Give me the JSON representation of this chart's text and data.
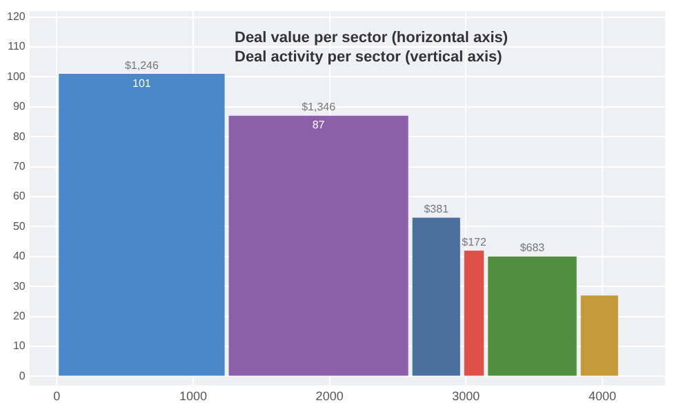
{
  "chart_data": {
    "type": "bar",
    "title": "Deal value per sector (horizontal axis)",
    "subtitle": "Deal activity per sector (vertical axis)",
    "x": [
      623,
      1919,
      2782,
      3059,
      3486,
      3978
    ],
    "values": [
      101,
      87,
      53,
      42,
      40,
      27
    ],
    "colors": [
      "#4a88c7",
      "#8c5fa8",
      "#4a6f9c",
      "#e0504a",
      "#4f8f3f",
      "#c59a3a"
    ],
    "value_labels": [
      "101",
      "87",
      null,
      null,
      null,
      null
    ],
    "annotations": [
      {
        "text": "$1,246",
        "x": 623,
        "y": 101
      },
      {
        "text": "$1,346",
        "x": 1919,
        "y": 87
      },
      {
        "text": "$381",
        "x": 2782,
        "y": 53
      },
      {
        "text": "$172",
        "x": 3059,
        "y": 42
      },
      {
        "text": "$683",
        "x": 3486,
        "y": 40
      }
    ],
    "xlim": [
      -200,
      4460
    ],
    "xticks": [
      0,
      1000,
      2000,
      3000,
      4000
    ],
    "ylim": [
      -3,
      122
    ],
    "yticks": [
      0,
      10,
      20,
      30,
      40,
      50,
      60,
      70,
      80,
      90,
      100,
      110,
      120
    ],
    "grid": true,
    "legend": false
  }
}
